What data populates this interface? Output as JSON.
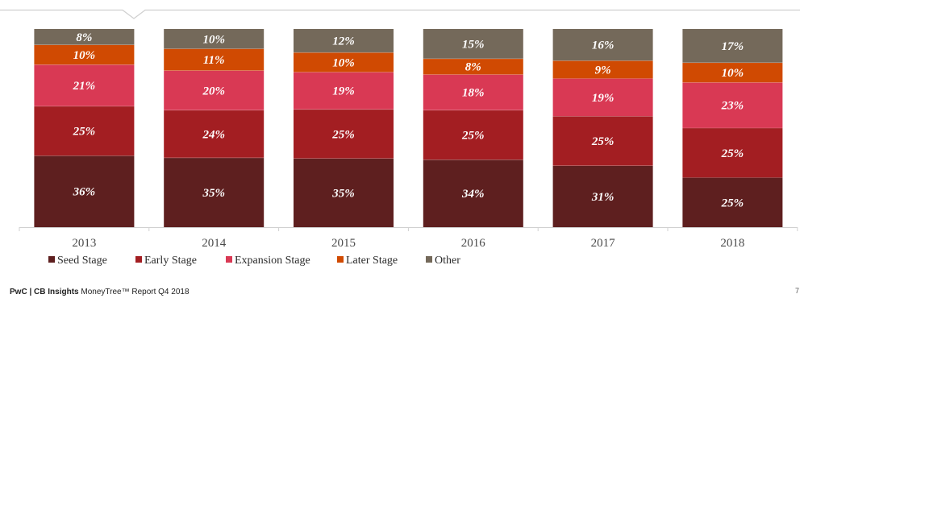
{
  "footer": {
    "brand": "PwC | CB Insights",
    "report": "MoneyTree™ Report Q4 2018"
  },
  "page_number": "7",
  "chart_data": {
    "type": "bar",
    "stacked": true,
    "normalized": true,
    "categories": [
      "2013",
      "2014",
      "2015",
      "2016",
      "2017",
      "2018"
    ],
    "series": [
      {
        "name": "Seed Stage",
        "color": "#5e1f1f",
        "values": [
          36,
          35,
          35,
          34,
          31,
          25
        ]
      },
      {
        "name": "Early Stage",
        "color": "#a31e22",
        "values": [
          25,
          24,
          25,
          25,
          25,
          25
        ]
      },
      {
        "name": "Expansion Stage",
        "color": "#d93954",
        "values": [
          21,
          20,
          19,
          18,
          19,
          23
        ]
      },
      {
        "name": "Later Stage",
        "color": "#d04a02",
        "values": [
          10,
          11,
          10,
          8,
          9,
          10
        ]
      },
      {
        "name": "Other",
        "color": "#74695a",
        "values": [
          8,
          10,
          12,
          15,
          16,
          17
        ]
      }
    ],
    "value_suffix": "%",
    "legend_position": "bottom-left",
    "grid": false
  }
}
